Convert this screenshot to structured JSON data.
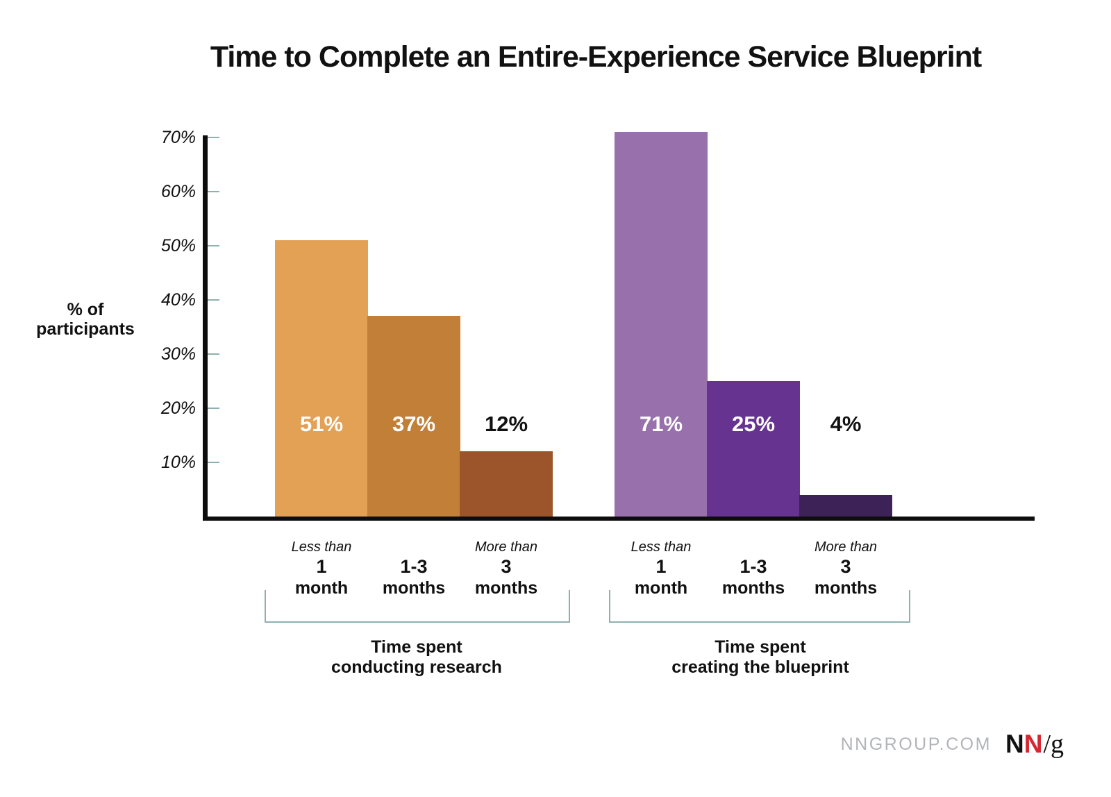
{
  "title": "Time to Complete an Entire-Experience Service Blueprint",
  "chart_data": {
    "type": "bar",
    "title": "Time to Complete an Entire-Experience Service Blueprint",
    "ylabel": "% of\nparticipants",
    "xlabel": "",
    "ylim": [
      0,
      72
    ],
    "grid": false,
    "legend_position": "none",
    "y_ticks": [
      {
        "value": 70,
        "label": "70%"
      },
      {
        "value": 60,
        "label": "60%"
      },
      {
        "value": 50,
        "label": "50%"
      },
      {
        "value": 40,
        "label": "40%"
      },
      {
        "value": 30,
        "label": "30%"
      },
      {
        "value": 20,
        "label": "20%"
      },
      {
        "value": 10,
        "label": "10%"
      }
    ],
    "groups": [
      {
        "label": "Time spent\nconducting research",
        "bars": [
          {
            "prefix": "Less than",
            "amount": "1",
            "unit": "month",
            "value": 51,
            "value_label": "51%",
            "color": "#e3a155",
            "value_label_color": "#ffffff"
          },
          {
            "prefix": "",
            "amount": "1-3",
            "unit": "months",
            "value": 37,
            "value_label": "37%",
            "color": "#c17f37",
            "value_label_color": "#ffffff"
          },
          {
            "prefix": "More than",
            "amount": "3",
            "unit": "months",
            "value": 12,
            "value_label": "12%",
            "color": "#9c552a",
            "value_label_color": "#111111"
          }
        ]
      },
      {
        "label": "Time spent\ncreating the blueprint",
        "bars": [
          {
            "prefix": "Less than",
            "amount": "1",
            "unit": "month",
            "value": 71,
            "value_label": "71%",
            "color": "#9770ac",
            "value_label_color": "#ffffff"
          },
          {
            "prefix": "",
            "amount": "1-3",
            "unit": "months",
            "value": 25,
            "value_label": "25%",
            "color": "#663391",
            "value_label_color": "#ffffff"
          },
          {
            "prefix": "More than",
            "amount": "3",
            "unit": "months",
            "value": 4,
            "value_label": "4%",
            "color": "#3d2257",
            "value_label_color": "#111111"
          }
        ]
      }
    ]
  },
  "colors": {
    "axis": "#0d0d0d",
    "tick": "#8fb0b0",
    "bracket": "#8fb0b0",
    "site_gray": "#b2b4b8",
    "logo_red": "#d62631"
  },
  "footer": {
    "site": "NNGROUP.COM",
    "logo": {
      "n1": "N",
      "n2": "N",
      "slash_g": "/g"
    }
  }
}
